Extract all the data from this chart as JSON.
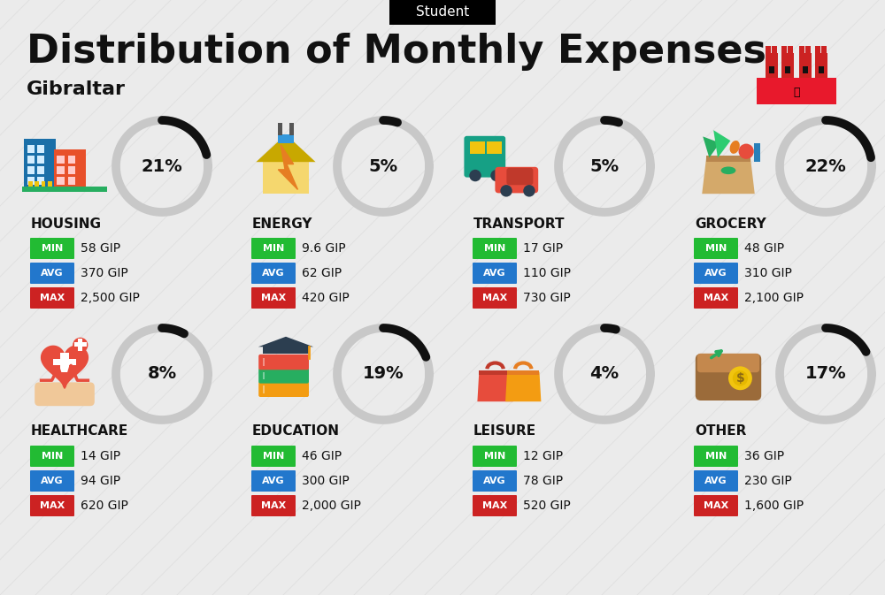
{
  "title": "Distribution of Monthly Expenses",
  "subtitle": "Gibraltar",
  "tag": "Student",
  "bg_color": "#ebebeb",
  "categories": [
    {
      "name": "HOUSING",
      "pct": 21,
      "min_val": "58 GIP",
      "avg_val": "370 GIP",
      "max_val": "2,500 GIP",
      "col": 0,
      "row": 0,
      "icon_type": "housing"
    },
    {
      "name": "ENERGY",
      "pct": 5,
      "min_val": "9.6 GIP",
      "avg_val": "62 GIP",
      "max_val": "420 GIP",
      "col": 1,
      "row": 0,
      "icon_type": "energy"
    },
    {
      "name": "TRANSPORT",
      "pct": 5,
      "min_val": "17 GIP",
      "avg_val": "110 GIP",
      "max_val": "730 GIP",
      "col": 2,
      "row": 0,
      "icon_type": "transport"
    },
    {
      "name": "GROCERY",
      "pct": 22,
      "min_val": "48 GIP",
      "avg_val": "310 GIP",
      "max_val": "2,100 GIP",
      "col": 3,
      "row": 0,
      "icon_type": "grocery"
    },
    {
      "name": "HEALTHCARE",
      "pct": 8,
      "min_val": "14 GIP",
      "avg_val": "94 GIP",
      "max_val": "620 GIP",
      "col": 0,
      "row": 1,
      "icon_type": "healthcare"
    },
    {
      "name": "EDUCATION",
      "pct": 19,
      "min_val": "46 GIP",
      "avg_val": "300 GIP",
      "max_val": "2,000 GIP",
      "col": 1,
      "row": 1,
      "icon_type": "education"
    },
    {
      "name": "LEISURE",
      "pct": 4,
      "min_val": "12 GIP",
      "avg_val": "78 GIP",
      "max_val": "520 GIP",
      "col": 2,
      "row": 1,
      "icon_type": "leisure"
    },
    {
      "name": "OTHER",
      "pct": 17,
      "min_val": "36 GIP",
      "avg_val": "230 GIP",
      "max_val": "1,600 GIP",
      "col": 3,
      "row": 1,
      "icon_type": "other"
    }
  ],
  "min_color": "#22bb33",
  "avg_color": "#2277cc",
  "max_color": "#cc2222",
  "arc_color": "#111111",
  "arc_bg_color": "#c8c8c8",
  "text_color": "#111111"
}
